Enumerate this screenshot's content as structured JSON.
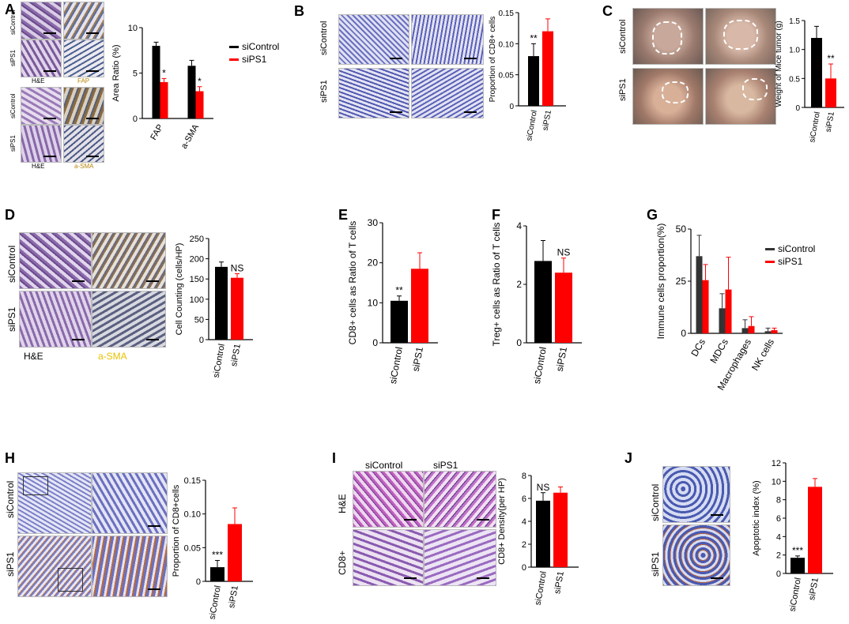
{
  "colors": {
    "control": "#000000",
    "treatment": "#ff0000",
    "dark_gray": "#333333"
  },
  "panels": {
    "A": {
      "letter": "A",
      "row_labels": [
        "siControl",
        "siPS1",
        "siControl",
        "siPS1"
      ],
      "stain_he": "H&E",
      "stain_fap": "FAP",
      "stain_he2": "H&E",
      "stain_asma": "a-SMA"
    },
    "B": {
      "letter": "B",
      "row_labels": [
        "siControl",
        "siPS1"
      ]
    },
    "C": {
      "letter": "C",
      "row_labels": [
        "siControl",
        "siPS1"
      ]
    },
    "D": {
      "letter": "D",
      "row_labels": [
        "siControl",
        "siPS1"
      ],
      "stain_he": "H&E",
      "stain_asma": "a-SMA"
    },
    "E": {
      "letter": "E"
    },
    "F": {
      "letter": "F"
    },
    "G": {
      "letter": "G"
    },
    "H": {
      "letter": "H",
      "row_labels": [
        "siControl",
        "siPS1"
      ]
    },
    "I": {
      "letter": "I",
      "col_labels": [
        "siControl",
        "siPS1"
      ],
      "row_labels": [
        "H&E",
        "CD8+"
      ]
    },
    "J": {
      "letter": "J",
      "row_labels": [
        "siControl",
        "siPS1"
      ]
    }
  },
  "chart_data": [
    {
      "id": "A",
      "type": "bar",
      "categories": [
        "FAP",
        "a-SMA"
      ],
      "series": [
        {
          "name": "siControl",
          "values": [
            8.0,
            5.8
          ],
          "err": [
            0.4,
            0.6
          ]
        },
        {
          "name": "siPS1",
          "values": [
            4.0,
            3.0
          ],
          "err": [
            0.4,
            0.5
          ]
        }
      ],
      "ylabel": "Area Ratio (%)",
      "ylim": [
        0,
        10
      ],
      "yticks": [
        "0",
        "5",
        "10"
      ],
      "annotations": [
        "*",
        "*"
      ],
      "legend": "right"
    },
    {
      "id": "B",
      "type": "bar",
      "categories": [
        "siControl",
        "siPS1"
      ],
      "values": [
        0.08,
        0.12
      ],
      "err": [
        0.02,
        0.02
      ],
      "ylabel": "Proportion of CD8+ cells",
      "ylim": [
        0,
        0.15
      ],
      "yticks": [
        "0",
        "0.05",
        "0.10",
        "0.15"
      ],
      "annotations": [
        "**",
        ""
      ]
    },
    {
      "id": "C",
      "type": "bar",
      "categories": [
        "siControl",
        "siPS1"
      ],
      "values": [
        1.2,
        0.5
      ],
      "err": [
        0.2,
        0.25
      ],
      "ylabel": "Weight of Mice tumor (g)",
      "ylim": [
        0,
        1.5
      ],
      "yticks": [
        "0",
        "0.5",
        "1.0",
        "1.5"
      ],
      "annotations": [
        "",
        "**"
      ]
    },
    {
      "id": "D",
      "type": "bar",
      "categories": [
        "siControl",
        "siPS1"
      ],
      "values": [
        180,
        153
      ],
      "err": [
        12,
        10
      ],
      "ylabel": "Cell Counting (cells/HP)",
      "ylim": [
        0,
        250
      ],
      "yticks": [
        "0",
        "50",
        "100",
        "150",
        "200",
        "250"
      ],
      "annotations": [
        "",
        "NS"
      ]
    },
    {
      "id": "E",
      "type": "bar",
      "categories": [
        "siControl",
        "siPS1"
      ],
      "values": [
        10.5,
        18.5
      ],
      "err": [
        1.2,
        4
      ],
      "ylabel": "CD8+ cells as Ratio of T cells",
      "ylim": [
        0,
        30
      ],
      "yticks": [
        "0",
        "10",
        "20",
        "30"
      ],
      "annotations": [
        "**",
        ""
      ]
    },
    {
      "id": "F",
      "type": "bar",
      "categories": [
        "siControl",
        "siPS1"
      ],
      "values": [
        2.8,
        2.4
      ],
      "err": [
        0.7,
        0.5
      ],
      "ylabel": "Treg+ cells as Ratio of T cells",
      "ylim": [
        0,
        4
      ],
      "yticks": [
        "0",
        "2",
        "4"
      ],
      "annotations": [
        "",
        "NS"
      ]
    },
    {
      "id": "G",
      "type": "bar",
      "categories": [
        "DCs",
        "MDCs",
        "Macrophages",
        "NK cells"
      ],
      "series": [
        {
          "name": "siControl",
          "values": [
            37,
            12,
            2.5,
            1
          ],
          "err": [
            10,
            7,
            4,
            1.5
          ]
        },
        {
          "name": "siPS1",
          "values": [
            25.5,
            21,
            3.5,
            1.5
          ],
          "err": [
            7.5,
            15.5,
            4.5,
            1
          ]
        }
      ],
      "ylabel": "Immune cells proportion(%)",
      "ylim": [
        0,
        50
      ],
      "yticks": [
        "0",
        "25",
        "50"
      ],
      "legend": "top-right"
    },
    {
      "id": "H",
      "type": "bar",
      "categories": [
        "siControl",
        "siPS1"
      ],
      "values": [
        0.021,
        0.085
      ],
      "err": [
        0.01,
        0.024
      ],
      "ylabel": "Proportion of CD8+cells",
      "ylim": [
        0,
        0.15
      ],
      "yticks": [
        "0",
        "0.05",
        "0.10",
        "0.15"
      ],
      "annotations": [
        "***",
        ""
      ]
    },
    {
      "id": "I",
      "type": "bar",
      "categories": [
        "siControl",
        "siPS1"
      ],
      "values": [
        5.8,
        6.5
      ],
      "err": [
        0.7,
        0.5
      ],
      "ylabel": "CD8+ Density(per HP)",
      "ylim": [
        0,
        8
      ],
      "yticks": [
        "0",
        "2",
        "4",
        "6",
        "8"
      ],
      "annotations": [
        "NS",
        ""
      ]
    },
    {
      "id": "J",
      "type": "bar",
      "categories": [
        "siControl",
        "siPS1"
      ],
      "values": [
        1.7,
        9.4
      ],
      "err": [
        0.2,
        0.9
      ],
      "ylabel": "Apoptotic index (%)",
      "ylim": [
        0,
        12
      ],
      "yticks": [
        "0",
        "2",
        "4",
        "6",
        "8",
        "10",
        "12"
      ],
      "annotations": [
        "***",
        ""
      ]
    }
  ]
}
